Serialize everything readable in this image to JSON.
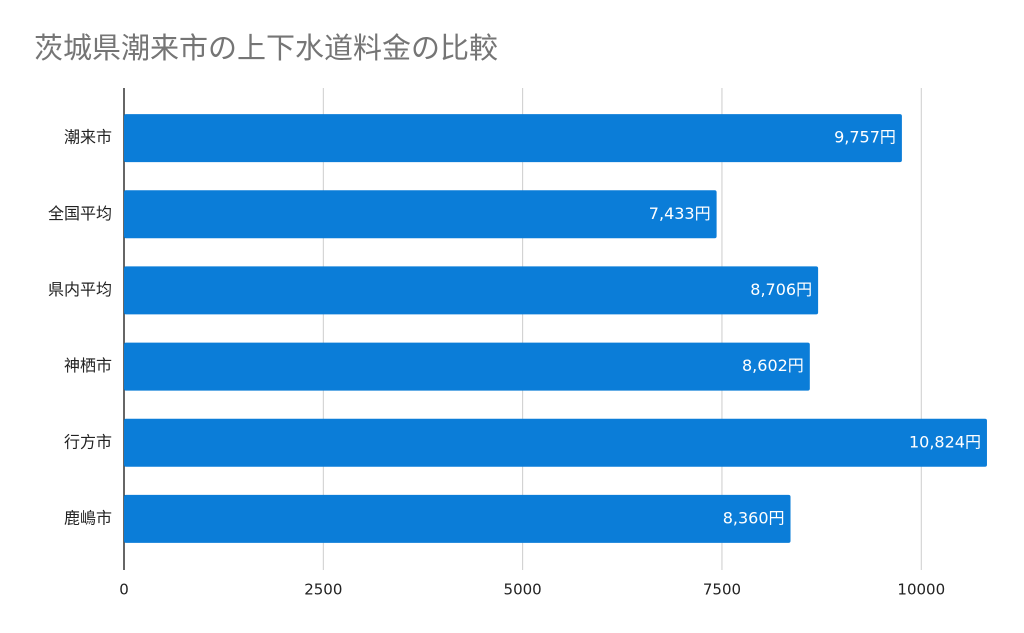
{
  "chart_data": {
    "type": "bar",
    "orientation": "horizontal",
    "title": "茨城県潮来市の上下水道料金の比較",
    "categories": [
      "潮来市",
      "全国平均",
      "県内平均",
      "神栖市",
      "行方市",
      "鹿嶋市"
    ],
    "values": [
      9757,
      7433,
      8706,
      8602,
      10824,
      8360
    ],
    "value_labels": [
      "9,757円",
      "7,433円",
      "8,706円",
      "8,602円",
      "10,824円",
      "8,360円"
    ],
    "color": "#0b7dd8",
    "xlim": [
      0,
      11000
    ],
    "xticks": [
      0,
      2500,
      5000,
      7500,
      10000
    ],
    "grid": true
  }
}
